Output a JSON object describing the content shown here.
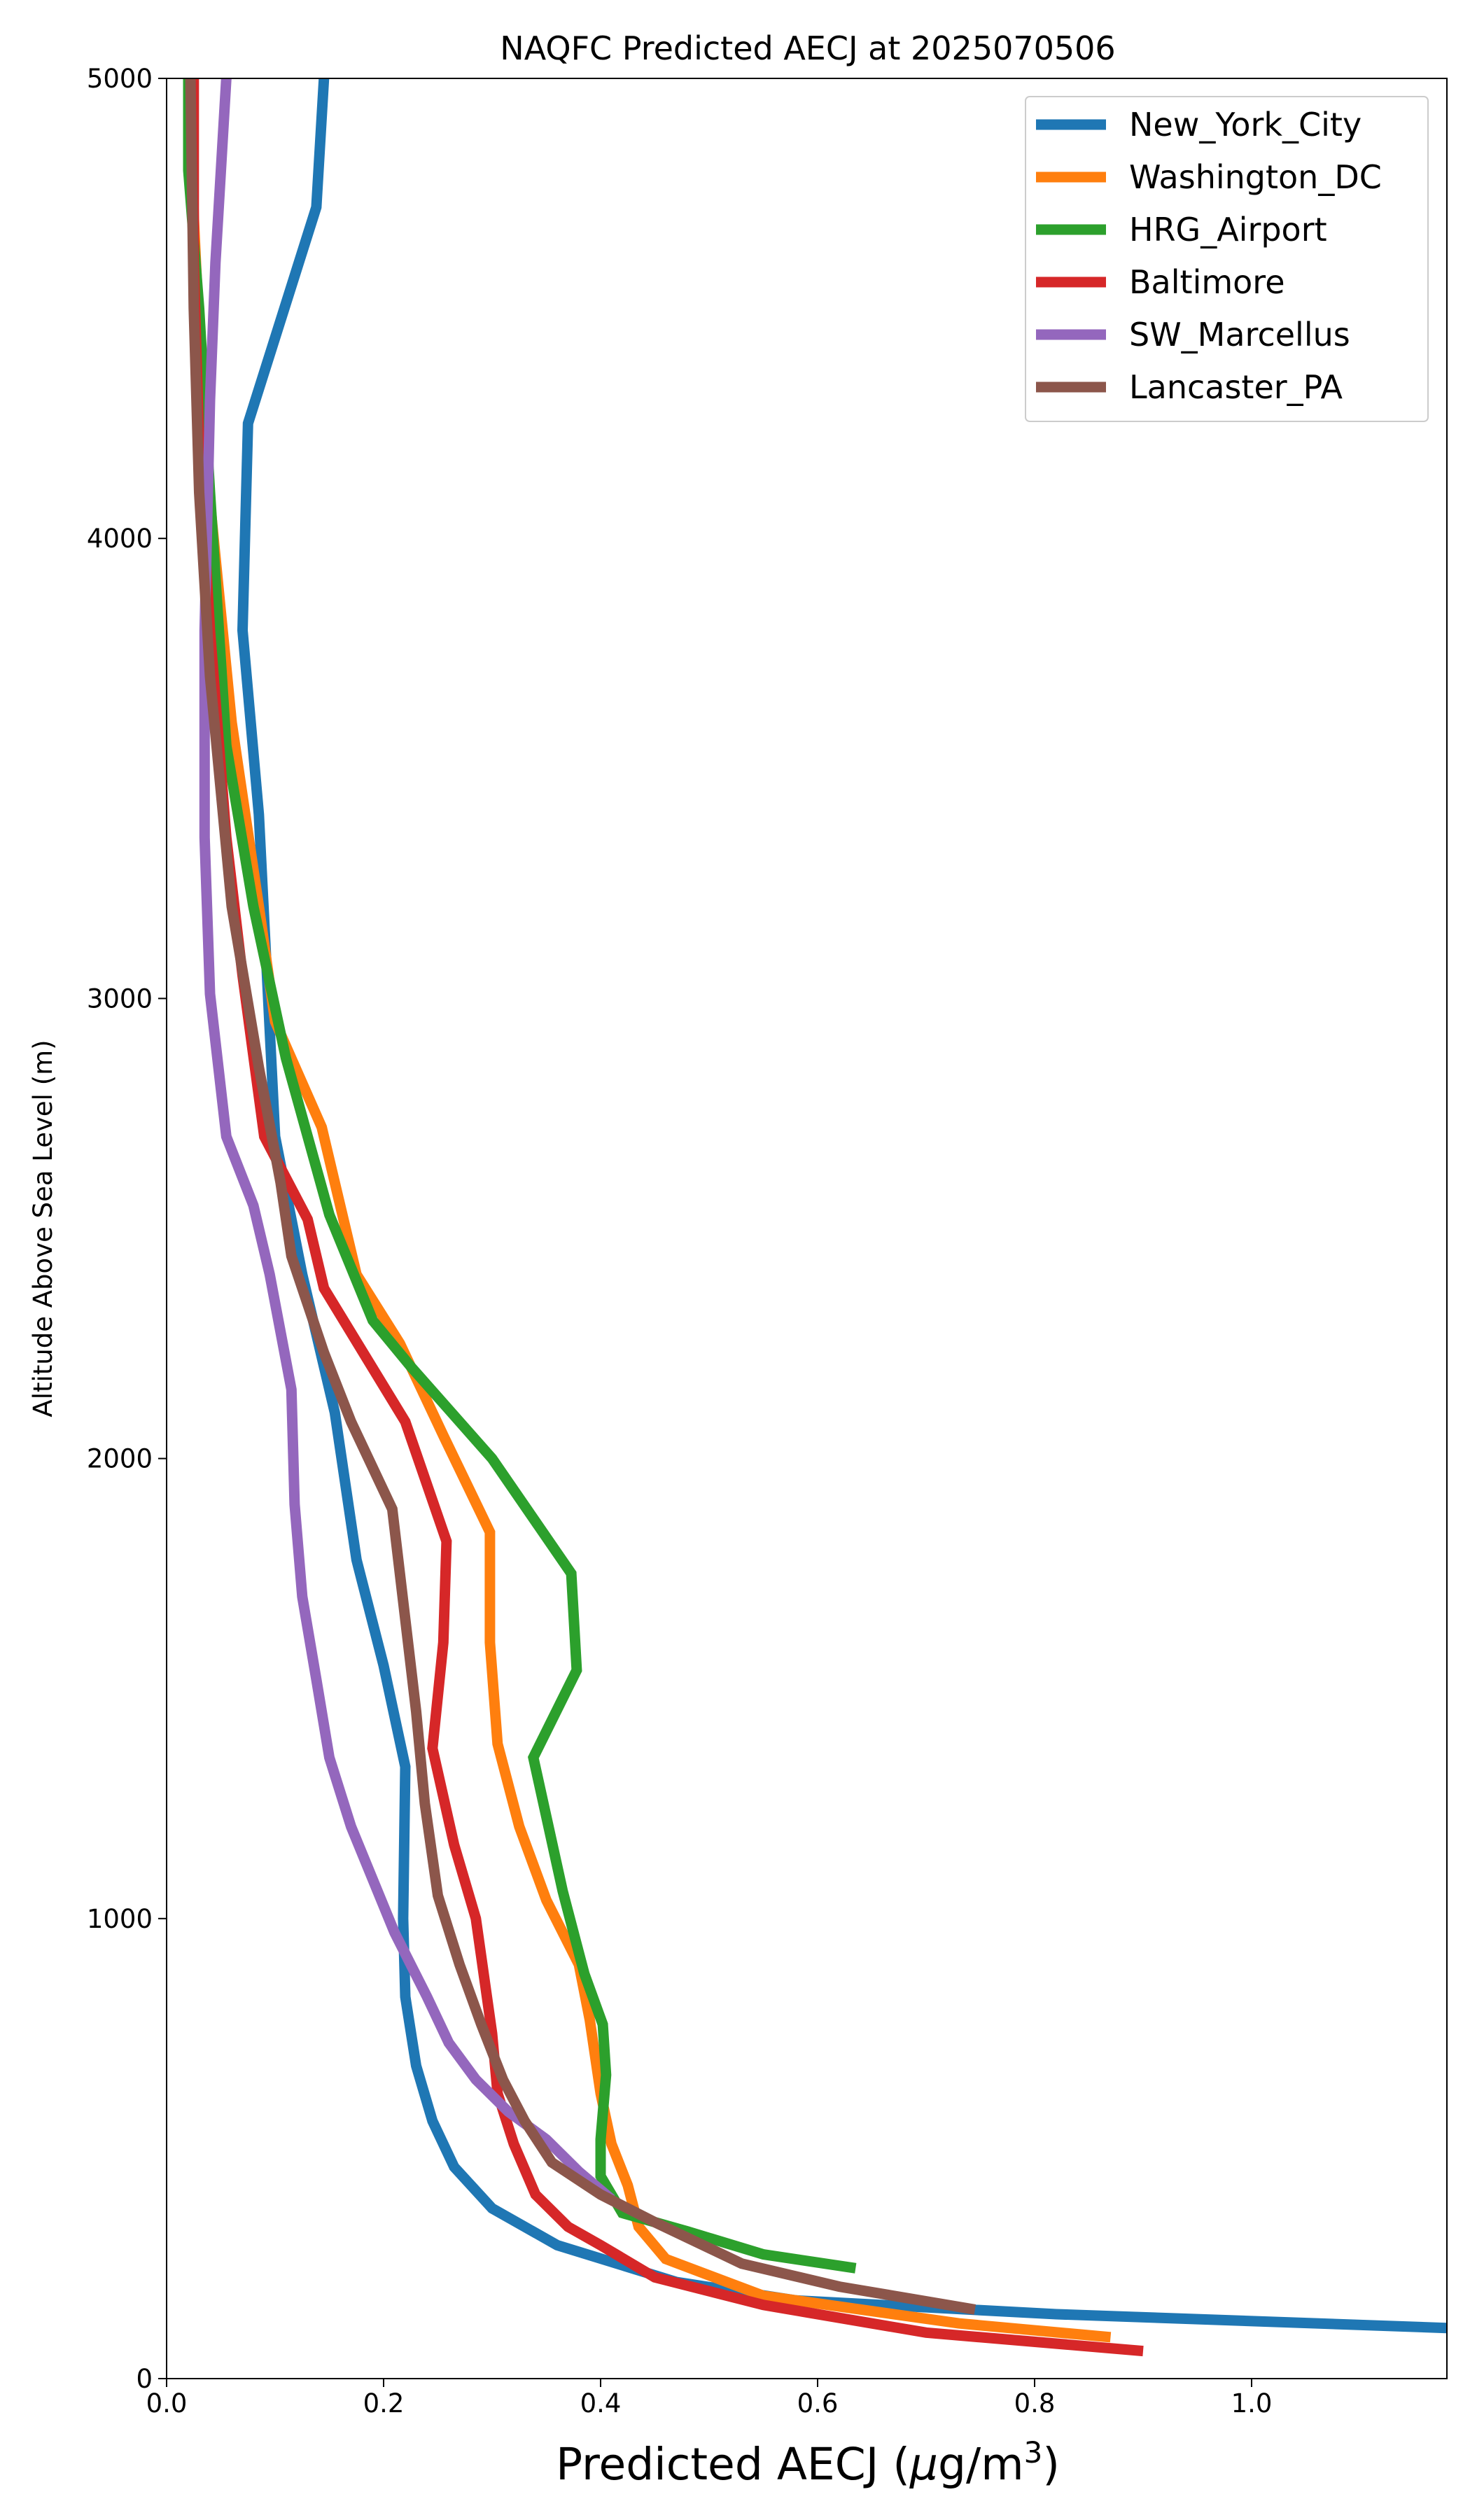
{
  "chart_data": {
    "type": "line",
    "title": "NAQFC Predicted AECJ at 2025070506",
    "xlabel_text": "Predicted AECJ (",
    "xlabel_mu": "μ",
    "xlabel_units": "g/m",
    "xlabel_sup": "3",
    "xlabel_close": ")",
    "ylabel": "Altitude Above Sea Level (m)",
    "xlim": [
      0.0,
      1.18
    ],
    "ylim": [
      0,
      5000
    ],
    "xticks": [
      0.0,
      0.2,
      0.4,
      0.6,
      0.8,
      1.0
    ],
    "xtick_labels": [
      "0.0",
      "0.2",
      "0.4",
      "0.6",
      "0.8",
      "1.0"
    ],
    "yticks": [
      0,
      1000,
      2000,
      3000,
      4000,
      5000
    ],
    "ytick_labels": [
      "0",
      "1000",
      "2000",
      "3000",
      "4000",
      "5000"
    ],
    "grid": false,
    "legend_position": "upper-right",
    "series": [
      {
        "name": "New_York_City",
        "color": "#1f77b4",
        "points": [
          [
            1.18,
            110
          ],
          [
            0.82,
            140
          ],
          [
            0.58,
            170
          ],
          [
            0.47,
            210
          ],
          [
            0.36,
            290
          ],
          [
            0.3,
            370
          ],
          [
            0.265,
            460
          ],
          [
            0.245,
            560
          ],
          [
            0.23,
            680
          ],
          [
            0.22,
            830
          ],
          [
            0.218,
            1000
          ],
          [
            0.22,
            1330
          ],
          [
            0.2,
            1550
          ],
          [
            0.175,
            1780
          ],
          [
            0.155,
            2100
          ],
          [
            0.125,
            2400
          ],
          [
            0.1,
            2700
          ],
          [
            0.085,
            3400
          ],
          [
            0.07,
            3800
          ],
          [
            0.075,
            4250
          ],
          [
            0.138,
            4720
          ],
          [
            0.145,
            5000
          ]
        ]
      },
      {
        "name": "Washington_DC",
        "color": "#ff7f0e",
        "points": [
          [
            0.87,
            90
          ],
          [
            0.73,
            120
          ],
          [
            0.55,
            180
          ],
          [
            0.46,
            260
          ],
          [
            0.435,
            330
          ],
          [
            0.425,
            420
          ],
          [
            0.41,
            510
          ],
          [
            0.4,
            620
          ],
          [
            0.39,
            780
          ],
          [
            0.38,
            900
          ],
          [
            0.35,
            1040
          ],
          [
            0.325,
            1200
          ],
          [
            0.305,
            1380
          ],
          [
            0.298,
            1600
          ],
          [
            0.298,
            1840
          ],
          [
            0.255,
            2050
          ],
          [
            0.215,
            2250
          ],
          [
            0.175,
            2400
          ],
          [
            0.143,
            2720
          ],
          [
            0.1,
            2950
          ],
          [
            0.085,
            3200
          ],
          [
            0.06,
            3600
          ],
          [
            0.035,
            4200
          ],
          [
            0.025,
            4700
          ],
          [
            0.022,
            5000
          ]
        ]
      },
      {
        "name": "HRG_Airport",
        "color": "#2ca02c",
        "points": [
          [
            0.635,
            240
          ],
          [
            0.55,
            270
          ],
          [
            0.48,
            320
          ],
          [
            0.42,
            360
          ],
          [
            0.4,
            440
          ],
          [
            0.4,
            520
          ],
          [
            0.405,
            660
          ],
          [
            0.402,
            770
          ],
          [
            0.385,
            880
          ],
          [
            0.365,
            1060
          ],
          [
            0.338,
            1350
          ],
          [
            0.378,
            1540
          ],
          [
            0.373,
            1750
          ],
          [
            0.3,
            2000
          ],
          [
            0.225,
            2200
          ],
          [
            0.19,
            2300
          ],
          [
            0.15,
            2530
          ],
          [
            0.11,
            2870
          ],
          [
            0.08,
            3200
          ],
          [
            0.055,
            3550
          ],
          [
            0.04,
            4100
          ],
          [
            0.03,
            4500
          ],
          [
            0.02,
            4800
          ],
          [
            0.02,
            5000
          ]
        ]
      },
      {
        "name": "Baltimore",
        "color": "#d62728",
        "points": [
          [
            0.9,
            60
          ],
          [
            0.7,
            100
          ],
          [
            0.55,
            160
          ],
          [
            0.45,
            220
          ],
          [
            0.4,
            290
          ],
          [
            0.37,
            330
          ],
          [
            0.34,
            400
          ],
          [
            0.32,
            510
          ],
          [
            0.305,
            620
          ],
          [
            0.3,
            750
          ],
          [
            0.285,
            1000
          ],
          [
            0.265,
            1160
          ],
          [
            0.245,
            1370
          ],
          [
            0.255,
            1600
          ],
          [
            0.258,
            1820
          ],
          [
            0.22,
            2080
          ],
          [
            0.145,
            2370
          ],
          [
            0.13,
            2520
          ],
          [
            0.09,
            2700
          ],
          [
            0.07,
            3050
          ],
          [
            0.055,
            3350
          ],
          [
            0.04,
            3800
          ],
          [
            0.03,
            4200
          ],
          [
            0.025,
            4600
          ],
          [
            0.025,
            5000
          ]
        ]
      },
      {
        "name": "SW_Marcellus",
        "color": "#9467bd",
        "points": [
          [
            0.41,
            390
          ],
          [
            0.38,
            450
          ],
          [
            0.35,
            520
          ],
          [
            0.315,
            580
          ],
          [
            0.285,
            650
          ],
          [
            0.26,
            730
          ],
          [
            0.24,
            830
          ],
          [
            0.21,
            970
          ],
          [
            0.17,
            1200
          ],
          [
            0.15,
            1350
          ],
          [
            0.138,
            1520
          ],
          [
            0.125,
            1700
          ],
          [
            0.118,
            1900
          ],
          [
            0.115,
            2150
          ],
          [
            0.095,
            2400
          ],
          [
            0.08,
            2550
          ],
          [
            0.055,
            2700
          ],
          [
            0.04,
            3010
          ],
          [
            0.035,
            3350
          ],
          [
            0.035,
            3800
          ],
          [
            0.04,
            4300
          ],
          [
            0.045,
            4600
          ],
          [
            0.055,
            5000
          ]
        ]
      },
      {
        "name": "Lancaster_PA",
        "color": "#8c564b",
        "points": [
          [
            0.745,
            150
          ],
          [
            0.62,
            200
          ],
          [
            0.53,
            250
          ],
          [
            0.45,
            340
          ],
          [
            0.4,
            400
          ],
          [
            0.355,
            470
          ],
          [
            0.33,
            560
          ],
          [
            0.31,
            650
          ],
          [
            0.29,
            770
          ],
          [
            0.27,
            900
          ],
          [
            0.25,
            1050
          ],
          [
            0.238,
            1250
          ],
          [
            0.23,
            1450
          ],
          [
            0.208,
            1890
          ],
          [
            0.17,
            2080
          ],
          [
            0.145,
            2230
          ],
          [
            0.115,
            2440
          ],
          [
            0.105,
            2600
          ],
          [
            0.085,
            2850
          ],
          [
            0.06,
            3200
          ],
          [
            0.04,
            3700
          ],
          [
            0.03,
            4100
          ],
          [
            0.025,
            4500
          ],
          [
            0.022,
            5000
          ]
        ]
      }
    ]
  }
}
